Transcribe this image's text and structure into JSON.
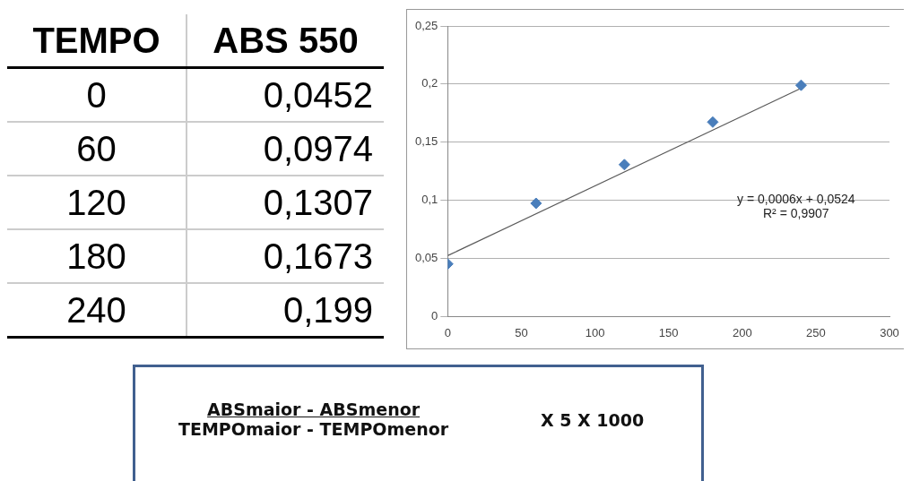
{
  "chart_data": {
    "type": "scatter",
    "series": [
      {
        "color": "#4a7ebb",
        "x": [
          0,
          60,
          120,
          180,
          240
        ],
        "values": [
          0.0452,
          0.0974,
          0.1307,
          0.1673,
          0.199
        ],
        "marker": "diamond"
      },
      {
        "type": "line",
        "color": "#595959",
        "x": [
          0,
          240
        ],
        "values": [
          0.0524,
          0.1964
        ],
        "marker": "none",
        "line_style": "solid"
      }
    ],
    "xlim": [
      0,
      300
    ],
    "xticks": [
      0,
      50,
      100,
      150,
      200,
      250,
      300
    ],
    "ylim": [
      0,
      0.25
    ],
    "yticks": [
      0,
      {
        "value": 0.05,
        "label": "0,05"
      },
      {
        "value": 0.1,
        "label": "0,1"
      },
      {
        "value": 0.15,
        "label": "0,15"
      },
      {
        "value": 0.2,
        "label": "0,2"
      },
      {
        "value": 0.25,
        "label": "0,25"
      }
    ],
    "grid": "y",
    "legend": false,
    "annotations": [
      "TEMPO",
      "ABS 550",
      "0",
      "0,0452",
      "60",
      "0,0974",
      "120",
      "0,1307",
      "180",
      "0,1673",
      "240",
      "0,199",
      "y = 0,0006x + 0,0524",
      "R² = 0,9907",
      "ABSmaior - ABSmenor",
      "TEMPOmaior - TEMPOmenor",
      "X 5 X 1000"
    ]
  }
}
